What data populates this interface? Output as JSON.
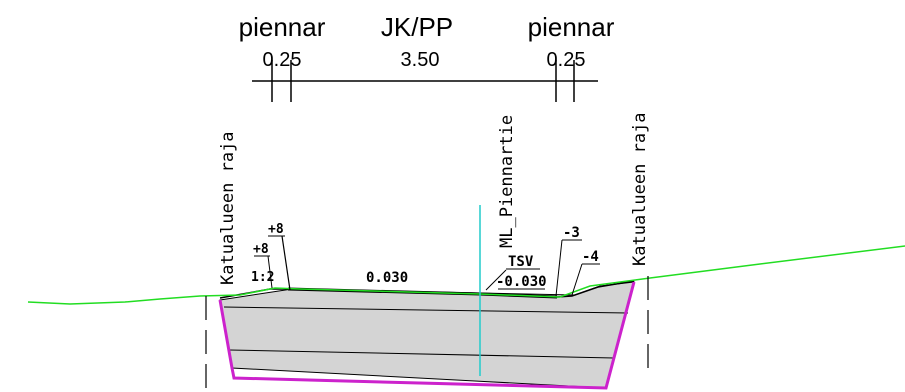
{
  "top_labels": {
    "left_shoulder": "piennar",
    "carriageway": "JK/PP",
    "right_shoulder": "piennar"
  },
  "dimensions": {
    "left_shoulder_width": "0.25",
    "carriageway_width": "3.50",
    "right_shoulder_width": "0.25"
  },
  "vertical_labels": {
    "left_boundary": "Katualueen raja",
    "centerline": "ML_Piennartie",
    "right_boundary": "Katualueen raja"
  },
  "annotations": {
    "plus8_upper": "+8",
    "plus8_lower": "+8",
    "slope": "1:2",
    "crossfall_left": "0.030",
    "tsv": "TSV",
    "crossfall_right": "-0.030",
    "minus3": "-3",
    "minus4": "-4"
  },
  "colors": {
    "ground_line": "#22dd22",
    "structure_fill": "#d4d4d4",
    "subgrade_edge": "#cc22cc",
    "centerline": "#22cccc",
    "ink": "#000000"
  }
}
